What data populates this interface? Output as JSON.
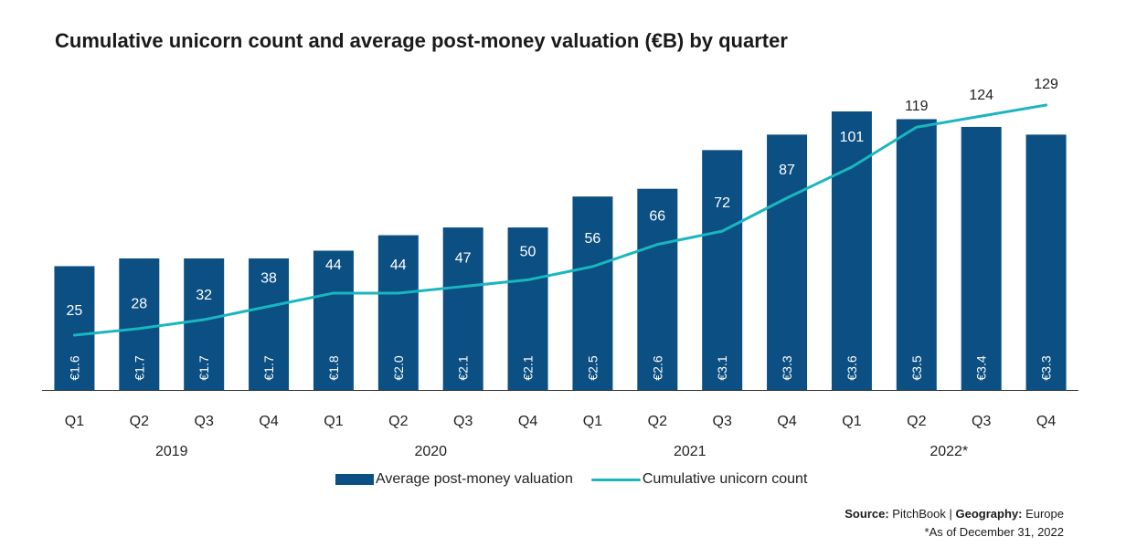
{
  "title": "Cumulative unicorn count and average post-money valuation (€B) by quarter",
  "legend": {
    "bar_label": "Average post-money valuation",
    "line_label": "Cumulative unicorn count"
  },
  "footer": {
    "source_label": "Source:",
    "source_value": "PitchBook",
    "separator": "|",
    "geo_label": "Geography:",
    "geo_value": "Europe",
    "note": "*As of December 31, 2022"
  },
  "colors": {
    "bar": "#0b4f83",
    "line": "#1ab6c0",
    "axis": "#333333"
  },
  "chart_data": {
    "type": "bar",
    "categories": [
      "Q1",
      "Q2",
      "Q3",
      "Q4",
      "Q1",
      "Q2",
      "Q3",
      "Q4",
      "Q1",
      "Q2",
      "Q3",
      "Q4",
      "Q1",
      "Q2",
      "Q3",
      "Q4"
    ],
    "year_groups": [
      {
        "label": "2019",
        "start": 0,
        "end": 3
      },
      {
        "label": "2020",
        "start": 4,
        "end": 7
      },
      {
        "label": "2021",
        "start": 8,
        "end": 11
      },
      {
        "label": "2022*",
        "start": 12,
        "end": 15
      }
    ],
    "series": [
      {
        "name": "Average post-money valuation",
        "kind": "bar",
        "axis": "valuation",
        "values": [
          1.6,
          1.7,
          1.7,
          1.7,
          1.8,
          2.0,
          2.1,
          2.1,
          2.5,
          2.6,
          3.1,
          3.3,
          3.6,
          3.5,
          3.4,
          3.3
        ],
        "labels": [
          "€1.6",
          "€1.7",
          "€1.7",
          "€1.7",
          "€1.8",
          "€2.0",
          "€2.1",
          "€2.1",
          "€2.5",
          "€2.6",
          "€3.1",
          "€3.3",
          "€3.6",
          "€3.5",
          "€3.4",
          "€3.3"
        ]
      },
      {
        "name": "Cumulative unicorn count",
        "kind": "line",
        "axis": "count",
        "values": [
          25,
          28,
          32,
          38,
          44,
          44,
          47,
          50,
          56,
          66,
          72,
          87,
          101,
          119,
          124,
          129
        ],
        "labels": [
          "25",
          "28",
          "32",
          "38",
          "44",
          "44",
          "47",
          "50",
          "56",
          "66",
          "72",
          "87",
          "101",
          "119",
          "124",
          "129"
        ]
      }
    ],
    "valuation_axis_range": [
      0,
      3.75
    ],
    "count_axis_range": [
      0,
      140
    ],
    "grid": false,
    "legend_position": "bottom"
  }
}
